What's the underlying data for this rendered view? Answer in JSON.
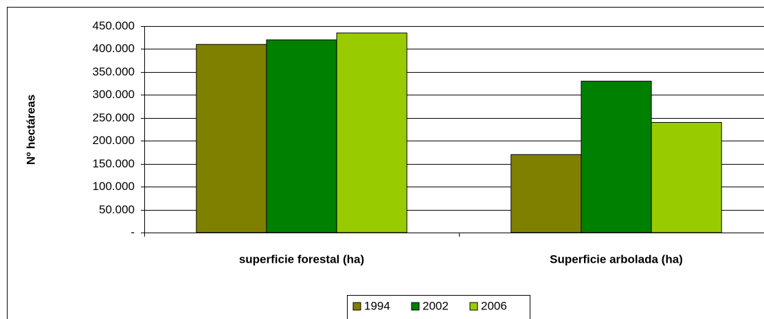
{
  "chart_data": {
    "type": "bar",
    "y_label": "Nº hectáreas",
    "categories": [
      "superficie forestal (ha)",
      "Superficie arbolada (ha)"
    ],
    "series": [
      {
        "name": "1994",
        "color": "#808000",
        "values": [
          410000,
          170000
        ]
      },
      {
        "name": "2002",
        "color": "#008000",
        "values": [
          420000,
          330000
        ]
      },
      {
        "name": "2006",
        "color": "#99cc00",
        "values": [
          435000,
          240000
        ]
      }
    ],
    "ylim": [
      0,
      450000
    ],
    "yticks": [
      {
        "value": 0,
        "label": "-"
      },
      {
        "value": 50000,
        "label": "50.000"
      },
      {
        "value": 100000,
        "label": "100.000"
      },
      {
        "value": 150000,
        "label": "150.000"
      },
      {
        "value": 200000,
        "label": "200.000"
      },
      {
        "value": 250000,
        "label": "250.000"
      },
      {
        "value": 300000,
        "label": "300.000"
      },
      {
        "value": 350000,
        "label": "350.000"
      },
      {
        "value": 400000,
        "label": "400.000"
      },
      {
        "value": 450000,
        "label": "450.000"
      }
    ],
    "grid": true,
    "legend": "bottom"
  }
}
